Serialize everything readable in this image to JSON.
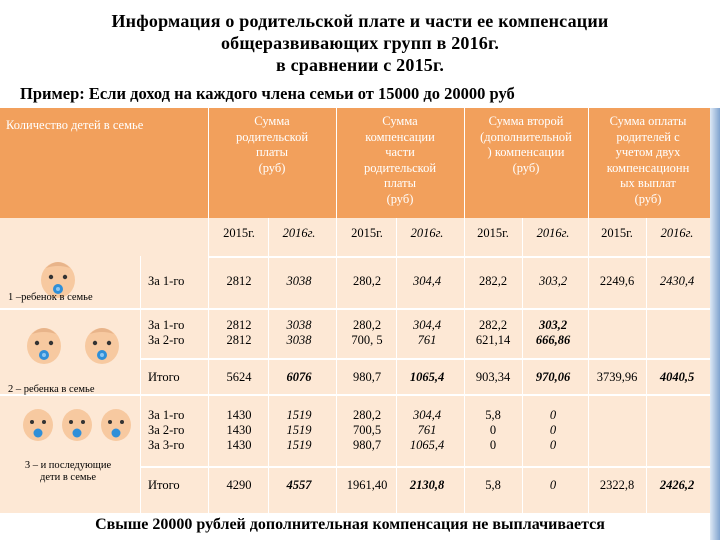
{
  "title_lines": [
    "Информация о родительской плате и части ее компенсации",
    "общеразвивающих групп в 2016г.",
    "в сравнении с 2015г."
  ],
  "subtitle": "Пример: Если доход на каждого члена семьи от 15000  до 20000 руб",
  "header": {
    "children_col": "Количество детей в семье",
    "col1": [
      "Сумма",
      "родительской",
      "платы",
      "(руб)"
    ],
    "col2": [
      "Сумма",
      "компенсации",
      "части",
      "родительской",
      "платы",
      "(руб)"
    ],
    "col3": [
      "Сумма второй",
      "(дополнительной",
      ") компенсации",
      "(руб)"
    ],
    "col4": [
      "Сумма оплаты",
      "родителей с",
      "учетом двух",
      "компенсационн",
      "ых выплат",
      "(руб)"
    ],
    "years": [
      "2015г.",
      "2016г.",
      "2015г.",
      "2016г.",
      "2015г.",
      "2016г.",
      "2015г.",
      "2016г."
    ]
  },
  "groups": {
    "g1": "1 –ребенок в семье",
    "g2": "2 – ребенка в семье",
    "g3": [
      "3 – и последующие",
      "дети в семье"
    ]
  },
  "rows": {
    "r1_label": "За 1-го",
    "r1": [
      "2812",
      "3038",
      "280,2",
      "304,4",
      "282,2",
      "303,2",
      "2249,6",
      "2430,4"
    ],
    "r2_label": [
      "За 1-го",
      "За 2-го"
    ],
    "r2": [
      [
        "2812",
        "2812"
      ],
      [
        "3038",
        "3038"
      ],
      [
        "280,2",
        "700, 5"
      ],
      [
        "304,4",
        "761"
      ],
      [
        "282,2",
        "621,14"
      ],
      [
        "303,2",
        "666,86"
      ]
    ],
    "r3_label": "Итого",
    "r3": [
      "5624",
      "6076",
      "980,7",
      "1065,4",
      "903,34",
      "970,06",
      "3739,96",
      "4040,5"
    ],
    "r4_label": [
      "За 1-го",
      "За 2-го",
      "За 3-го"
    ],
    "r4": [
      [
        "1430",
        "1430",
        "1430"
      ],
      [
        "1519",
        "1519",
        "1519"
      ],
      [
        "280,2",
        "700,5",
        "980,7"
      ],
      [
        "304,4",
        "761",
        "1065,4"
      ],
      [
        "5,8",
        "0",
        "0"
      ],
      [
        "0",
        "0",
        "0"
      ]
    ],
    "r5_label": "Итого",
    "r5": [
      "4290",
      "4557",
      "1961,40",
      "2130,8",
      "5,8",
      "0",
      "2322,8",
      "2426,2"
    ]
  },
  "footer": "Свыше 20000 рублей дополнительная компенсация не выплачивается",
  "colors": {
    "header_bg": "#f2a05c",
    "body_bg": "#fde8d5",
    "baby_skin": "#f7c9a0",
    "pacifier": "#2f8fd8"
  }
}
